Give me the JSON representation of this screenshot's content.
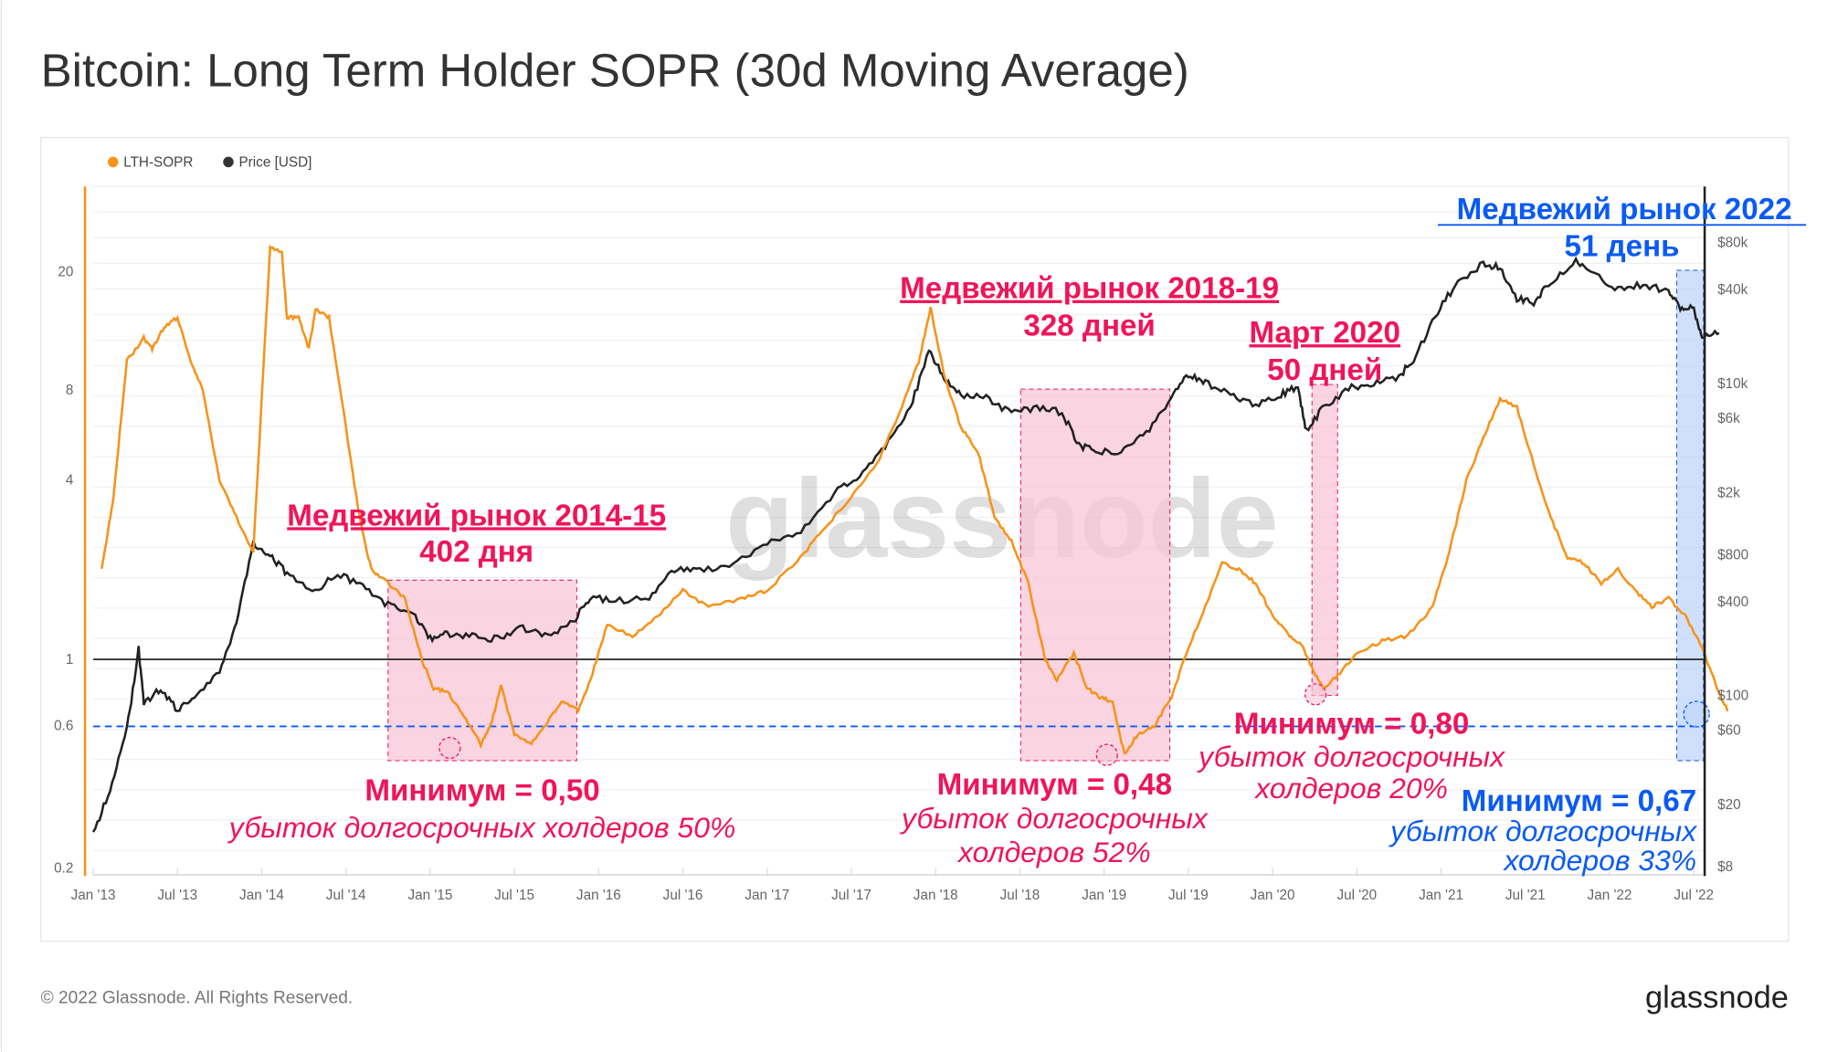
{
  "title": "Bitcoin: Long Term Holder SOPR (30d Moving Average)",
  "footer": {
    "copyright": "© 2022 Glassnode. All Rights Reserved.",
    "logo": "glassnode"
  },
  "watermark": "glassnode",
  "colors": {
    "sopr": "#f7931a",
    "price": "#222222",
    "red": "#f0145a",
    "blue": "#0a5af5"
  },
  "chart_data": {
    "type": "line",
    "title": "Bitcoin: Long Term Holder SOPR (30d Moving Average)",
    "legend": [
      {
        "label": "LTH-SOPR",
        "color": "#f7931a"
      },
      {
        "label": "Price [USD]",
        "color": "#222222"
      }
    ],
    "legend_position": "top-left",
    "x_ticks": [
      "Jan '13",
      "Jul '13",
      "Jan '14",
      "Jul '14",
      "Jan '15",
      "Jul '15",
      "Jan '16",
      "Jul '16",
      "Jan '17",
      "Jul '17",
      "Jan '18",
      "Jul '18",
      "Jan '19",
      "Jul '19",
      "Jan '20",
      "Jul '20",
      "Jan '21",
      "Jul '21",
      "Jan '22",
      "Jul '22"
    ],
    "x_range": [
      2013.0,
      2022.75
    ],
    "left_axis": {
      "scale": "log",
      "ticks": [
        "20",
        "8",
        "4",
        "1",
        "0.6",
        "0.2"
      ],
      "tick_values": [
        20,
        8,
        4,
        1,
        0.6,
        0.2
      ],
      "range": [
        0.18,
        50
      ]
    },
    "right_axis": {
      "scale": "log",
      "ticks": [
        "$80k",
        "$40k",
        "$10k",
        "$6k",
        "$2k",
        "$800",
        "$400",
        "$100",
        "$60",
        "$20",
        "$8"
      ],
      "tick_values": [
        80000,
        40000,
        10000,
        6000,
        2000,
        800,
        400,
        100,
        60,
        20,
        8
      ]
    },
    "reference_lines": [
      {
        "axis": "left",
        "value": 1,
        "style": "solid"
      },
      {
        "axis": "left",
        "value": 0.67,
        "style": "dashed"
      }
    ],
    "series": [
      {
        "name": "LTH-SOPR",
        "axis": "left",
        "points": [
          [
            2013.05,
            2.0
          ],
          [
            2013.12,
            3.5
          ],
          [
            2013.2,
            10
          ],
          [
            2013.3,
            12
          ],
          [
            2013.35,
            11
          ],
          [
            2013.42,
            13
          ],
          [
            2013.5,
            14
          ],
          [
            2013.58,
            10
          ],
          [
            2013.65,
            8
          ],
          [
            2013.75,
            4
          ],
          [
            2013.85,
            3
          ],
          [
            2013.95,
            2.3
          ],
          [
            2014.05,
            24
          ],
          [
            2014.12,
            23
          ],
          [
            2014.15,
            14
          ],
          [
            2014.22,
            14
          ],
          [
            2014.28,
            11
          ],
          [
            2014.32,
            15
          ],
          [
            2014.4,
            14
          ],
          [
            2014.5,
            6
          ],
          [
            2014.58,
            3
          ],
          [
            2014.65,
            2.0
          ],
          [
            2014.75,
            1.8
          ],
          [
            2014.85,
            1.6
          ],
          [
            2014.95,
            1.0
          ],
          [
            2015.02,
            0.8
          ],
          [
            2015.1,
            0.78
          ],
          [
            2015.2,
            0.65
          ],
          [
            2015.3,
            0.52
          ],
          [
            2015.36,
            0.6
          ],
          [
            2015.42,
            0.82
          ],
          [
            2015.5,
            0.56
          ],
          [
            2015.6,
            0.52
          ],
          [
            2015.7,
            0.62
          ],
          [
            2015.78,
            0.72
          ],
          [
            2015.88,
            0.68
          ],
          [
            2015.95,
            0.85
          ],
          [
            2016.05,
            1.3
          ],
          [
            2016.2,
            1.2
          ],
          [
            2016.35,
            1.4
          ],
          [
            2016.5,
            1.7
          ],
          [
            2016.65,
            1.5
          ],
          [
            2016.85,
            1.6
          ],
          [
            2017.0,
            1.7
          ],
          [
            2017.2,
            2.2
          ],
          [
            2017.35,
            2.8
          ],
          [
            2017.5,
            3.5
          ],
          [
            2017.65,
            4.5
          ],
          [
            2017.8,
            7
          ],
          [
            2017.9,
            10
          ],
          [
            2017.97,
            15
          ],
          [
            2018.05,
            9
          ],
          [
            2018.15,
            6
          ],
          [
            2018.25,
            5
          ],
          [
            2018.35,
            3
          ],
          [
            2018.45,
            2.5
          ],
          [
            2018.55,
            1.8
          ],
          [
            2018.65,
            1.0
          ],
          [
            2018.72,
            0.85
          ],
          [
            2018.82,
            1.05
          ],
          [
            2018.9,
            0.8
          ],
          [
            2018.97,
            0.75
          ],
          [
            2019.05,
            0.72
          ],
          [
            2019.12,
            0.48
          ],
          [
            2019.2,
            0.56
          ],
          [
            2019.3,
            0.6
          ],
          [
            2019.4,
            0.75
          ],
          [
            2019.5,
            1.1
          ],
          [
            2019.6,
            1.5
          ],
          [
            2019.7,
            2.1
          ],
          [
            2019.8,
            2.0
          ],
          [
            2019.9,
            1.8
          ],
          [
            2020.0,
            1.4
          ],
          [
            2020.1,
            1.2
          ],
          [
            2020.18,
            1.1
          ],
          [
            2020.25,
            0.9
          ],
          [
            2020.3,
            0.8
          ],
          [
            2020.4,
            0.9
          ],
          [
            2020.5,
            1.05
          ],
          [
            2020.65,
            1.15
          ],
          [
            2020.8,
            1.2
          ],
          [
            2020.95,
            1.5
          ],
          [
            2021.05,
            2.3
          ],
          [
            2021.15,
            4.0
          ],
          [
            2021.25,
            5.5
          ],
          [
            2021.35,
            7.5
          ],
          [
            2021.45,
            7.0
          ],
          [
            2021.55,
            4.5
          ],
          [
            2021.65,
            3.0
          ],
          [
            2021.75,
            2.2
          ],
          [
            2021.85,
            2.1
          ],
          [
            2021.95,
            1.8
          ],
          [
            2022.05,
            2.0
          ],
          [
            2022.15,
            1.7
          ],
          [
            2022.25,
            1.5
          ],
          [
            2022.35,
            1.6
          ],
          [
            2022.45,
            1.4
          ],
          [
            2022.55,
            1.1
          ],
          [
            2022.62,
            0.85
          ],
          [
            2022.7,
            0.67
          ]
        ]
      },
      {
        "name": "Price [USD]",
        "axis": "right",
        "points": [
          [
            2013.0,
            13
          ],
          [
            2013.1,
            25
          ],
          [
            2013.2,
            60
          ],
          [
            2013.27,
            200
          ],
          [
            2013.3,
            90
          ],
          [
            2013.4,
            110
          ],
          [
            2013.5,
            80
          ],
          [
            2013.6,
            100
          ],
          [
            2013.75,
            140
          ],
          [
            2013.85,
            300
          ],
          [
            2013.95,
            950
          ],
          [
            2014.05,
            800
          ],
          [
            2014.15,
            600
          ],
          [
            2014.3,
            450
          ],
          [
            2014.45,
            600
          ],
          [
            2014.6,
            500
          ],
          [
            2014.75,
            380
          ],
          [
            2014.9,
            340
          ],
          [
            2015.0,
            230
          ],
          [
            2015.1,
            250
          ],
          [
            2015.25,
            240
          ],
          [
            2015.4,
            230
          ],
          [
            2015.55,
            270
          ],
          [
            2015.7,
            240
          ],
          [
            2015.85,
            300
          ],
          [
            2015.95,
            430
          ],
          [
            2016.1,
            400
          ],
          [
            2016.3,
            430
          ],
          [
            2016.45,
            650
          ],
          [
            2016.6,
            630
          ],
          [
            2016.8,
            700
          ],
          [
            2017.0,
            950
          ],
          [
            2017.2,
            1100
          ],
          [
            2017.4,
            2000
          ],
          [
            2017.55,
            2500
          ],
          [
            2017.7,
            4000
          ],
          [
            2017.85,
            7000
          ],
          [
            2017.96,
            16000
          ],
          [
            2018.05,
            11000
          ],
          [
            2018.15,
            8500
          ],
          [
            2018.3,
            8000
          ],
          [
            2018.45,
            6500
          ],
          [
            2018.6,
            7000
          ],
          [
            2018.75,
            6500
          ],
          [
            2018.85,
            4000
          ],
          [
            2018.95,
            3700
          ],
          [
            2019.1,
            3600
          ],
          [
            2019.25,
            4800
          ],
          [
            2019.4,
            8000
          ],
          [
            2019.5,
            11500
          ],
          [
            2019.6,
            10000
          ],
          [
            2019.75,
            8500
          ],
          [
            2019.9,
            7300
          ],
          [
            2020.05,
            8500
          ],
          [
            2020.15,
            9500
          ],
          [
            2020.2,
            5000
          ],
          [
            2020.3,
            7000
          ],
          [
            2020.45,
            9300
          ],
          [
            2020.6,
            9800
          ],
          [
            2020.75,
            11000
          ],
          [
            2020.85,
            15000
          ],
          [
            2020.98,
            29000
          ],
          [
            2021.1,
            45000
          ],
          [
            2021.25,
            58000
          ],
          [
            2021.35,
            55000
          ],
          [
            2021.45,
            35000
          ],
          [
            2021.55,
            33000
          ],
          [
            2021.65,
            45000
          ],
          [
            2021.8,
            61000
          ],
          [
            2021.9,
            50000
          ],
          [
            2022.05,
            40000
          ],
          [
            2022.2,
            43000
          ],
          [
            2022.35,
            39000
          ],
          [
            2022.42,
            30000
          ],
          [
            2022.5,
            30000
          ],
          [
            2022.55,
            20000
          ],
          [
            2022.65,
            21000
          ]
        ]
      }
    ],
    "annotations": [
      {
        "title": "Медвежий рынок 2014-15",
        "duration": "402 дня",
        "min_label": "Минимум = 0,50",
        "loss_line1": "убыток долгосрочных холдеров 50%",
        "loss_line2": "",
        "color": "red"
      },
      {
        "title": "Медвежий рынок 2018-19",
        "duration": "328 дней",
        "min_label": "Минимум = 0,48",
        "loss_line1": "убыток долгосрочных",
        "loss_line2": "холдеров 52%",
        "color": "red"
      },
      {
        "title": "Март 2020",
        "duration": "50 дней",
        "min_label": "Минимум = 0,80",
        "loss_line1": "убыток долгосрочных",
        "loss_line2": "холдеров 20%",
        "color": "red"
      },
      {
        "title": "Медвежий рынок 2022",
        "duration": "51 день",
        "min_label": "Минимум = 0,67",
        "loss_line1": "убыток долгосрочных",
        "loss_line2": "холдеров 33%",
        "color": "blue"
      }
    ]
  }
}
